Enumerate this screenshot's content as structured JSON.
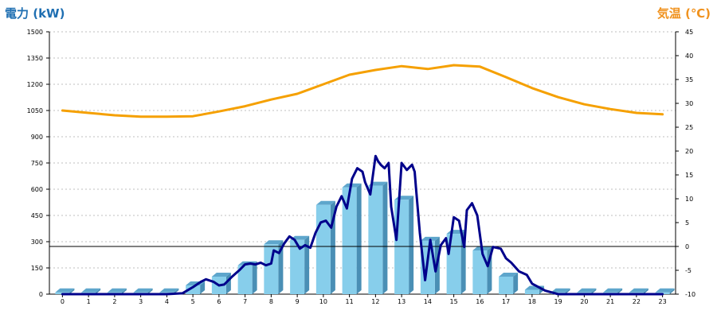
{
  "chart_data": {
    "type": "bar",
    "left_axis_title": "電力 (kW)",
    "right_axis_title": "気温 (℃)",
    "categories": [
      "0",
      "1",
      "2",
      "3",
      "4",
      "5",
      "6",
      "7",
      "8",
      "9",
      "10",
      "11",
      "12",
      "13",
      "14",
      "15",
      "16",
      "17",
      "18",
      "19",
      "20",
      "21",
      "22",
      "23"
    ],
    "y_left": {
      "min": 0,
      "max": 1500,
      "ticks": [
        0,
        150,
        300,
        450,
        600,
        750,
        900,
        1050,
        1200,
        1350,
        1500
      ]
    },
    "y_right": {
      "min": -10,
      "max": 45,
      "ticks": [
        -10,
        -5,
        0,
        5,
        10,
        15,
        20,
        25,
        30,
        35,
        40,
        45
      ]
    },
    "reference_line_right": 0,
    "grid": true,
    "series": [
      {
        "kind": "bar",
        "axis": "left",
        "color": "#87ceeb",
        "values": [
          10,
          10,
          10,
          10,
          10,
          50,
          100,
          165,
          285,
          310,
          510,
          610,
          620,
          540,
          305,
          345,
          250,
          100,
          25,
          10,
          10,
          10,
          10,
          10
        ]
      },
      {
        "kind": "line",
        "axis": "right",
        "color": "#f5a000",
        "x": [
          0,
          1,
          2,
          3,
          4,
          5,
          6,
          7,
          8,
          9,
          10,
          11,
          12,
          13,
          14,
          15,
          16,
          17,
          18,
          19,
          20,
          21,
          22,
          23
        ],
        "y": [
          28.5,
          28,
          27.5,
          27.2,
          27.2,
          27.3,
          28.3,
          29.4,
          30.8,
          32,
          34,
          36,
          37,
          37.8,
          37.2,
          38,
          37.7,
          35.5,
          33.2,
          31.3,
          29.8,
          28.8,
          28,
          27.7
        ]
      },
      {
        "kind": "line",
        "axis": "left",
        "color": "#00008b",
        "x": [
          0,
          1,
          2,
          3,
          4,
          4.6,
          5,
          5.3,
          5.5,
          5.8,
          6,
          6.2,
          6.5,
          6.8,
          7,
          7.2,
          7.4,
          7.6,
          7.8,
          8,
          8.1,
          8.3,
          8.5,
          8.7,
          8.9,
          9.1,
          9.3,
          9.5,
          9.7,
          9.9,
          10.1,
          10.3,
          10.5,
          10.7,
          10.9,
          11.1,
          11.3,
          11.5,
          11.6,
          11.8,
          12,
          12.1,
          12.2,
          12.35,
          12.5,
          12.6,
          12.8,
          13,
          13.2,
          13.4,
          13.5,
          13.55,
          13.7,
          13.9,
          14.1,
          14.3,
          14.5,
          14.7,
          14.8,
          15,
          15.2,
          15.4,
          15.5,
          15.7,
          15.9,
          16.1,
          16.3,
          16.5,
          16.8,
          17,
          17.2,
          17.5,
          17.8,
          18,
          18.5,
          19,
          20,
          21,
          22,
          23
        ],
        "y": [
          0,
          0,
          0,
          0,
          0,
          5,
          40,
          70,
          85,
          70,
          50,
          55,
          100,
          140,
          170,
          175,
          170,
          180,
          165,
          175,
          250,
          235,
          290,
          330,
          310,
          260,
          280,
          265,
          350,
          410,
          420,
          380,
          500,
          560,
          490,
          660,
          720,
          700,
          640,
          570,
          790,
          760,
          740,
          720,
          750,
          500,
          310,
          750,
          710,
          740,
          700,
          610,
          350,
          80,
          310,
          130,
          280,
          320,
          230,
          440,
          420,
          270,
          480,
          520,
          450,
          230,
          160,
          270,
          260,
          205,
          180,
          130,
          110,
          60,
          20,
          0,
          0,
          0,
          0,
          0
        ]
      }
    ]
  }
}
